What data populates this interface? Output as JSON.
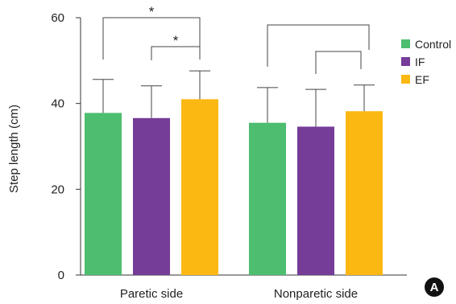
{
  "chart_data": {
    "type": "bar",
    "categories": [
      "Paretic side",
      "Nonparetic side"
    ],
    "series": [
      {
        "name": "Control",
        "color": "#4dbd6f",
        "values": [
          37.8,
          35.5
        ],
        "error": [
          7.8,
          8.2
        ]
      },
      {
        "name": "IF",
        "color": "#753c98",
        "values": [
          36.6,
          34.6
        ],
        "error": [
          7.5,
          8.7
        ]
      },
      {
        "name": "EF",
        "color": "#fbb812",
        "values": [
          41.0,
          38.2
        ],
        "error": [
          6.6,
          6.1
        ]
      }
    ],
    "ylabel": "Step length (cm)",
    "ylim": [
      0,
      60
    ],
    "yticks": [
      "0",
      "20",
      "40",
      "60"
    ],
    "legend_position": "right",
    "grid": false,
    "significance": [
      {
        "category": 0,
        "from": "Control",
        "to": "EF",
        "label": "*"
      },
      {
        "category": 0,
        "from": "IF",
        "to": "EF",
        "label": "*"
      },
      {
        "category": 1,
        "from": "Control",
        "to": "EF",
        "label": ""
      },
      {
        "category": 1,
        "from": "IF",
        "to": "EF",
        "label": ""
      }
    ],
    "panel_label": "A"
  }
}
